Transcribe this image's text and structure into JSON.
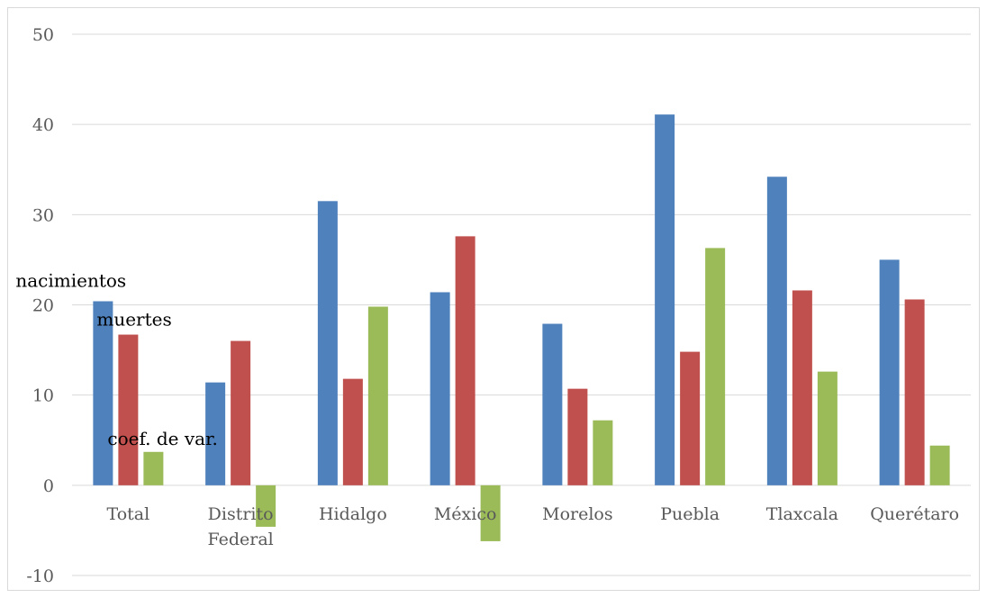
{
  "chart_data": {
    "type": "bar",
    "title": "",
    "xlabel": "",
    "ylabel": "",
    "ylim": [
      -10,
      50
    ],
    "yticks": [
      50,
      40,
      30,
      20,
      10,
      0,
      -10
    ],
    "grid": true,
    "legend": "none",
    "categories": [
      [
        "Total"
      ],
      [
        "Distrito",
        "Federal"
      ],
      [
        "Hidalgo"
      ],
      [
        "México"
      ],
      [
        "Morelos"
      ],
      [
        "Puebla"
      ],
      [
        "Tlaxcala"
      ],
      [
        "Querétaro"
      ]
    ],
    "series": [
      {
        "name": "nacimientos",
        "color": "#4f81bd",
        "values": [
          20.4,
          11.4,
          31.5,
          21.4,
          17.9,
          41.1,
          34.2,
          25.0
        ]
      },
      {
        "name": "muertes",
        "color": "#c0504d",
        "values": [
          16.7,
          16.0,
          11.8,
          27.6,
          10.7,
          14.8,
          21.6,
          20.6
        ]
      },
      {
        "name": "coef. de var.",
        "color": "#9bbb59",
        "values": [
          3.7,
          -4.6,
          19.8,
          -6.2,
          7.2,
          26.3,
          12.6,
          4.4
        ]
      }
    ]
  }
}
